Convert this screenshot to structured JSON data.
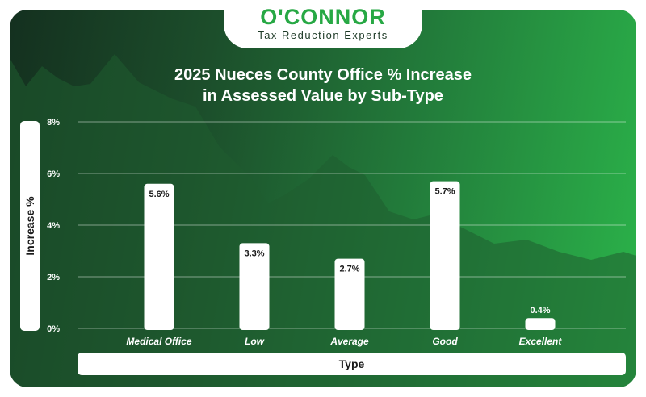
{
  "logo": {
    "name": "O'CONNOR",
    "tagline": "Tax Reduction Experts"
  },
  "chart_data": {
    "type": "bar",
    "title_line1": "2025 Nueces County Office % Increase",
    "title_line2": "in Assessed Value by Sub-Type",
    "xlabel": "Type",
    "ylabel": "Increase %",
    "categories": [
      "Medical Office",
      "Low",
      "Average",
      "Good",
      "Excellent"
    ],
    "values": [
      5.6,
      3.3,
      2.7,
      5.7,
      0.4
    ],
    "value_labels": [
      "5.6%",
      "3.3%",
      "2.7%",
      "5.7%",
      "0.4%"
    ],
    "yticks": [
      "0%",
      "2%",
      "4%",
      "6%",
      "8%"
    ],
    "ytick_values": [
      0,
      2,
      4,
      6,
      8
    ],
    "ylim": [
      0,
      8
    ],
    "grid": true,
    "colors": {
      "bar": "#ffffff",
      "background_start": "#14301f",
      "background_end": "#2bb44a",
      "brand_green": "#27a844"
    }
  }
}
